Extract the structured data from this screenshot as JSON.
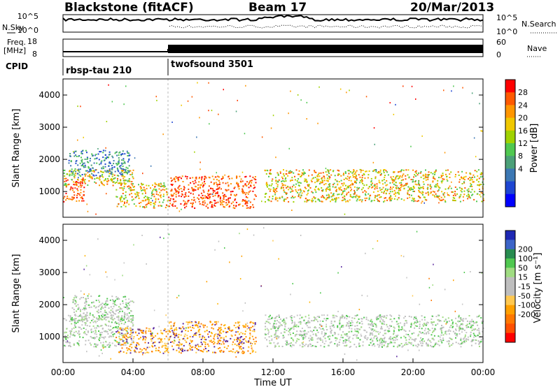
{
  "header": {
    "station": "Blackstone (fitACF)",
    "beam": "Beam 17",
    "date": "20/Mar/2013"
  },
  "top_panels": {
    "nsky_label": "N.Sky",
    "nsearch_label": "N.Search",
    "nsky_ticks": [
      "10^5",
      "10^0"
    ],
    "nsearch_ticks": [
      "10^5",
      "10^0"
    ],
    "freq_label_line1": "Freq.",
    "freq_label_line2": "[MHz]",
    "freq_ticks": [
      "18",
      "8"
    ],
    "nave_label": "Nave",
    "nave_ticks": [
      "60",
      "0"
    ],
    "cpid_label": "CPID",
    "cpid_segments": [
      {
        "name": "rbsp-tau 210",
        "start_hour": 0,
        "end_hour": 6
      },
      {
        "name": "twofsound 3501",
        "start_hour": 6,
        "end_hour": 24
      }
    ]
  },
  "power_colorbar": {
    "title": "Power [dB]",
    "ticks": [
      "28",
      "24",
      "20",
      "16",
      "12",
      "8",
      "4"
    ],
    "colors": [
      "#ff0000",
      "#ff5a00",
      "#ff9600",
      "#f0c800",
      "#a0d200",
      "#50c850",
      "#4ba078",
      "#3c78b4",
      "#1e46d2",
      "#0000ff"
    ]
  },
  "velocity_colorbar": {
    "title": "Velocity [m s⁻¹]",
    "ticks": [
      "200",
      "100",
      "50",
      "15",
      "-15",
      "-50",
      "-100",
      "-200"
    ],
    "colors": [
      "#1e28b4",
      "#3c64c8",
      "#288c50",
      "#50c850",
      "#a0dc82",
      "#bebebe",
      "#bebebe",
      "#ffc850",
      "#ffa000",
      "#ff7800",
      "#ff5000",
      "#ff0000"
    ]
  },
  "chart_data": [
    {
      "type": "heatmap",
      "panel": "power",
      "ylabel": "Slant Range [km]",
      "y_ticks": [
        "4000",
        "3000",
        "2000",
        "1000"
      ],
      "ylim": [
        200,
        4500
      ],
      "xlim": [
        0,
        24
      ],
      "echo_regions": [
        {
          "t0": 0.0,
          "t1": 1.2,
          "r0": 700,
          "r1": 1400,
          "level": "high"
        },
        {
          "t0": 0.0,
          "t1": 4.0,
          "r0": 1200,
          "r1": 1700,
          "level": "medium"
        },
        {
          "t0": 0.3,
          "t1": 3.8,
          "r0": 1500,
          "r1": 2300,
          "level": "low"
        },
        {
          "t0": 3.0,
          "t1": 6.0,
          "r0": 500,
          "r1": 1300,
          "level": "medium"
        },
        {
          "t0": 6.0,
          "t1": 11.0,
          "r0": 500,
          "r1": 1500,
          "level": "high"
        },
        {
          "t0": 11.5,
          "t1": 24.0,
          "r0": 700,
          "r1": 1700,
          "level": "medium"
        }
      ]
    },
    {
      "type": "heatmap",
      "panel": "velocity",
      "xlabel": "Time UT",
      "ylabel": "Slant Range [km]",
      "x_ticks": [
        "00:00",
        "04:00",
        "08:00",
        "12:00",
        "16:00",
        "20:00",
        "00:00"
      ],
      "y_ticks": [
        "4000",
        "3000",
        "2000",
        "1000"
      ],
      "ylim": [
        200,
        4500
      ],
      "xlim": [
        0,
        24
      ],
      "echo_regions": [
        {
          "t0": 0.0,
          "t1": 4.0,
          "r0": 700,
          "r1": 1700,
          "velocity": "near-zero"
        },
        {
          "t0": 0.5,
          "t1": 4.0,
          "r0": 1500,
          "r1": 2300,
          "velocity": "near-zero"
        },
        {
          "t0": 3.0,
          "t1": 6.0,
          "r0": 500,
          "r1": 1300,
          "velocity": "negative"
        },
        {
          "t0": 6.0,
          "t1": 11.0,
          "r0": 500,
          "r1": 1500,
          "velocity": "negative"
        },
        {
          "t0": 11.5,
          "t1": 24.0,
          "r0": 700,
          "r1": 1700,
          "velocity": "near-zero"
        }
      ]
    }
  ]
}
